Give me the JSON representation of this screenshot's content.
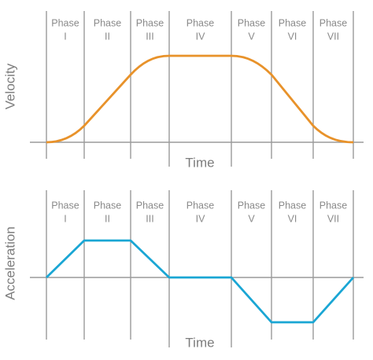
{
  "panels": [
    {
      "y_label": "Velocity",
      "x_label": "Time",
      "phases": [
        {
          "label": "Phase",
          "numeral": "I"
        },
        {
          "label": "Phase",
          "numeral": "II"
        },
        {
          "label": "Phase",
          "numeral": "III"
        },
        {
          "label": "Phase",
          "numeral": "IV"
        },
        {
          "label": "Phase",
          "numeral": "V"
        },
        {
          "label": "Phase",
          "numeral": "VI"
        },
        {
          "label": "Phase",
          "numeral": "VII"
        }
      ]
    },
    {
      "y_label": "Acceleration",
      "x_label": "Time",
      "phases": [
        {
          "label": "Phase",
          "numeral": "I"
        },
        {
          "label": "Phase",
          "numeral": "II"
        },
        {
          "label": "Phase",
          "numeral": "III"
        },
        {
          "label": "Phase",
          "numeral": "IV"
        },
        {
          "label": "Phase",
          "numeral": "V"
        },
        {
          "label": "Phase",
          "numeral": "VI"
        },
        {
          "label": "Phase",
          "numeral": "VII"
        }
      ]
    }
  ]
}
